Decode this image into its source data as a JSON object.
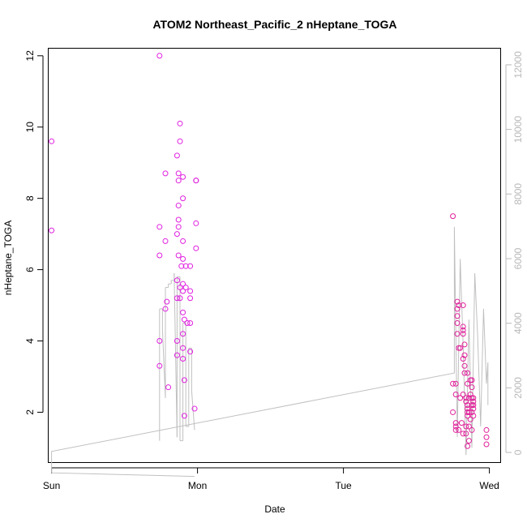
{
  "chart_data": {
    "type": "scatter",
    "title": "ATOM2 Northeast_Pacific_2 nHeptane_TOGA",
    "xlabel": "Date",
    "ylabel": "nHeptane_TOGA",
    "x_ticks": [
      {
        "label": "Sun",
        "value": 0
      },
      {
        "label": "Mon",
        "value": 1
      },
      {
        "label": "Tue",
        "value": 2
      },
      {
        "label": "Wed",
        "value": 3
      }
    ],
    "xlim": [
      -0.02,
      3.08
    ],
    "ylim": [
      0.6,
      12.2
    ],
    "y_ticks": [
      2,
      4,
      6,
      8,
      10,
      12
    ],
    "y2lim": [
      -300,
      12500
    ],
    "y2_ticks": [
      0,
      2000,
      4000,
      6000,
      8000,
      10000,
      12000
    ],
    "colors": {
      "points": "#e020e0",
      "points_dark": "#e0209a",
      "line": "#c0c0c0",
      "right_axis": "#b8b8b8"
    },
    "series": [
      {
        "marker": "circle",
        "points": [
          [
            0.0,
            9.6
          ],
          [
            0.0,
            7.1
          ],
          [
            0.74,
            12.0
          ],
          [
            0.74,
            7.2
          ],
          [
            0.74,
            6.4
          ],
          [
            0.74,
            4.0
          ],
          [
            0.74,
            3.3
          ],
          [
            0.78,
            8.7
          ],
          [
            0.78,
            6.8
          ],
          [
            0.78,
            4.9
          ],
          [
            0.79,
            5.1
          ],
          [
            0.8,
            2.7
          ],
          [
            0.86,
            9.2
          ],
          [
            0.86,
            7.0
          ],
          [
            0.86,
            5.7
          ],
          [
            0.86,
            5.2
          ],
          [
            0.86,
            4.0
          ],
          [
            0.86,
            3.6
          ],
          [
            0.87,
            8.7
          ],
          [
            0.87,
            8.5
          ],
          [
            0.87,
            7.8
          ],
          [
            0.87,
            7.4
          ],
          [
            0.87,
            7.2
          ],
          [
            0.87,
            6.4
          ],
          [
            0.88,
            10.1
          ],
          [
            0.88,
            9.6
          ],
          [
            0.88,
            5.5
          ],
          [
            0.88,
            5.2
          ],
          [
            0.89,
            6.1
          ],
          [
            0.9,
            8.6
          ],
          [
            0.9,
            8.0
          ],
          [
            0.9,
            6.8
          ],
          [
            0.9,
            6.3
          ],
          [
            0.9,
            5.6
          ],
          [
            0.9,
            5.4
          ],
          [
            0.9,
            4.8
          ],
          [
            0.9,
            4.2
          ],
          [
            0.9,
            3.8
          ],
          [
            0.9,
            3.5
          ],
          [
            0.91,
            4.6
          ],
          [
            0.91,
            2.9
          ],
          [
            0.91,
            1.9
          ],
          [
            0.92,
            5.5
          ],
          [
            0.92,
            6.1
          ],
          [
            0.93,
            4.5
          ],
          [
            0.95,
            6.1
          ],
          [
            0.95,
            5.4
          ],
          [
            0.95,
            5.2
          ],
          [
            0.95,
            4.5
          ],
          [
            0.95,
            3.7
          ],
          [
            0.98,
            2.1
          ],
          [
            0.99,
            8.5
          ],
          [
            0.99,
            8.5
          ],
          [
            0.99,
            7.3
          ],
          [
            0.99,
            6.6
          ],
          [
            2.75,
            7.5
          ],
          [
            2.75,
            2.8
          ],
          [
            2.75,
            2.0
          ],
          [
            2.77,
            1.7
          ],
          [
            2.77,
            1.6
          ],
          [
            2.77,
            1.5
          ],
          [
            2.77,
            2.8
          ],
          [
            2.77,
            2.5
          ],
          [
            2.78,
            4.9
          ],
          [
            2.78,
            4.7
          ],
          [
            2.78,
            4.5
          ],
          [
            2.78,
            5.1
          ],
          [
            2.78,
            4.2
          ],
          [
            2.79,
            5.0
          ],
          [
            2.79,
            3.8
          ],
          [
            2.79,
            1.5
          ],
          [
            2.8,
            3.8
          ],
          [
            2.8,
            2.4
          ],
          [
            2.81,
            1.7
          ],
          [
            2.82,
            5.0
          ],
          [
            2.82,
            4.3
          ],
          [
            2.82,
            4.4
          ],
          [
            2.82,
            4.2
          ],
          [
            2.82,
            3.5
          ],
          [
            2.82,
            2.5
          ],
          [
            2.82,
            1.4
          ],
          [
            2.83,
            3.6
          ],
          [
            2.83,
            3.9
          ],
          [
            2.83,
            3.3
          ],
          [
            2.83,
            3.1
          ],
          [
            2.84,
            2.4
          ],
          [
            2.84,
            2.3
          ],
          [
            2.84,
            1.6
          ],
          [
            2.84,
            1.4
          ],
          [
            2.85,
            3.1
          ],
          [
            2.85,
            2.8
          ],
          [
            2.85,
            2.2
          ],
          [
            2.85,
            2.1
          ],
          [
            2.85,
            2.0
          ],
          [
            2.85,
            1.9
          ],
          [
            2.85,
            1.05
          ],
          [
            2.86,
            2.4
          ],
          [
            2.86,
            2.0
          ],
          [
            2.86,
            1.6
          ],
          [
            2.86,
            1.2
          ],
          [
            2.87,
            2.9
          ],
          [
            2.87,
            2.5
          ],
          [
            2.87,
            1.8
          ],
          [
            2.88,
            2.9
          ],
          [
            2.88,
            2.7
          ],
          [
            2.88,
            2.4
          ],
          [
            2.88,
            2.2
          ],
          [
            2.88,
            2.0
          ],
          [
            2.88,
            1.5
          ],
          [
            2.89,
            2.3
          ],
          [
            2.89,
            2.4
          ],
          [
            2.89,
            2.2
          ],
          [
            2.89,
            2.1
          ],
          [
            2.89,
            1.9
          ],
          [
            2.98,
            1.5
          ],
          [
            2.98,
            1.3
          ],
          [
            2.98,
            1.1
          ]
        ]
      },
      {
        "marker": "line",
        "axis": "right",
        "points": [
          [
            0.98,
            0.2
          ],
          [
            0.0,
            0.3
          ],
          [
            0.0,
            0.9
          ],
          [
            2.76,
            3.1
          ],
          [
            2.76,
            7.2
          ],
          [
            2.78,
            1.3
          ],
          [
            2.8,
            6.3
          ],
          [
            2.82,
            3.9
          ],
          [
            2.84,
            0.8
          ],
          [
            2.86,
            4.6
          ],
          [
            2.88,
            1.0
          ],
          [
            2.9,
            5.9
          ],
          [
            2.92,
            4.1
          ],
          [
            2.94,
            1.6
          ],
          [
            2.96,
            4.9
          ],
          [
            2.98,
            2.8
          ],
          [
            2.99,
            3.4
          ],
          [
            2.99,
            2.2
          ]
        ]
      }
    ]
  }
}
